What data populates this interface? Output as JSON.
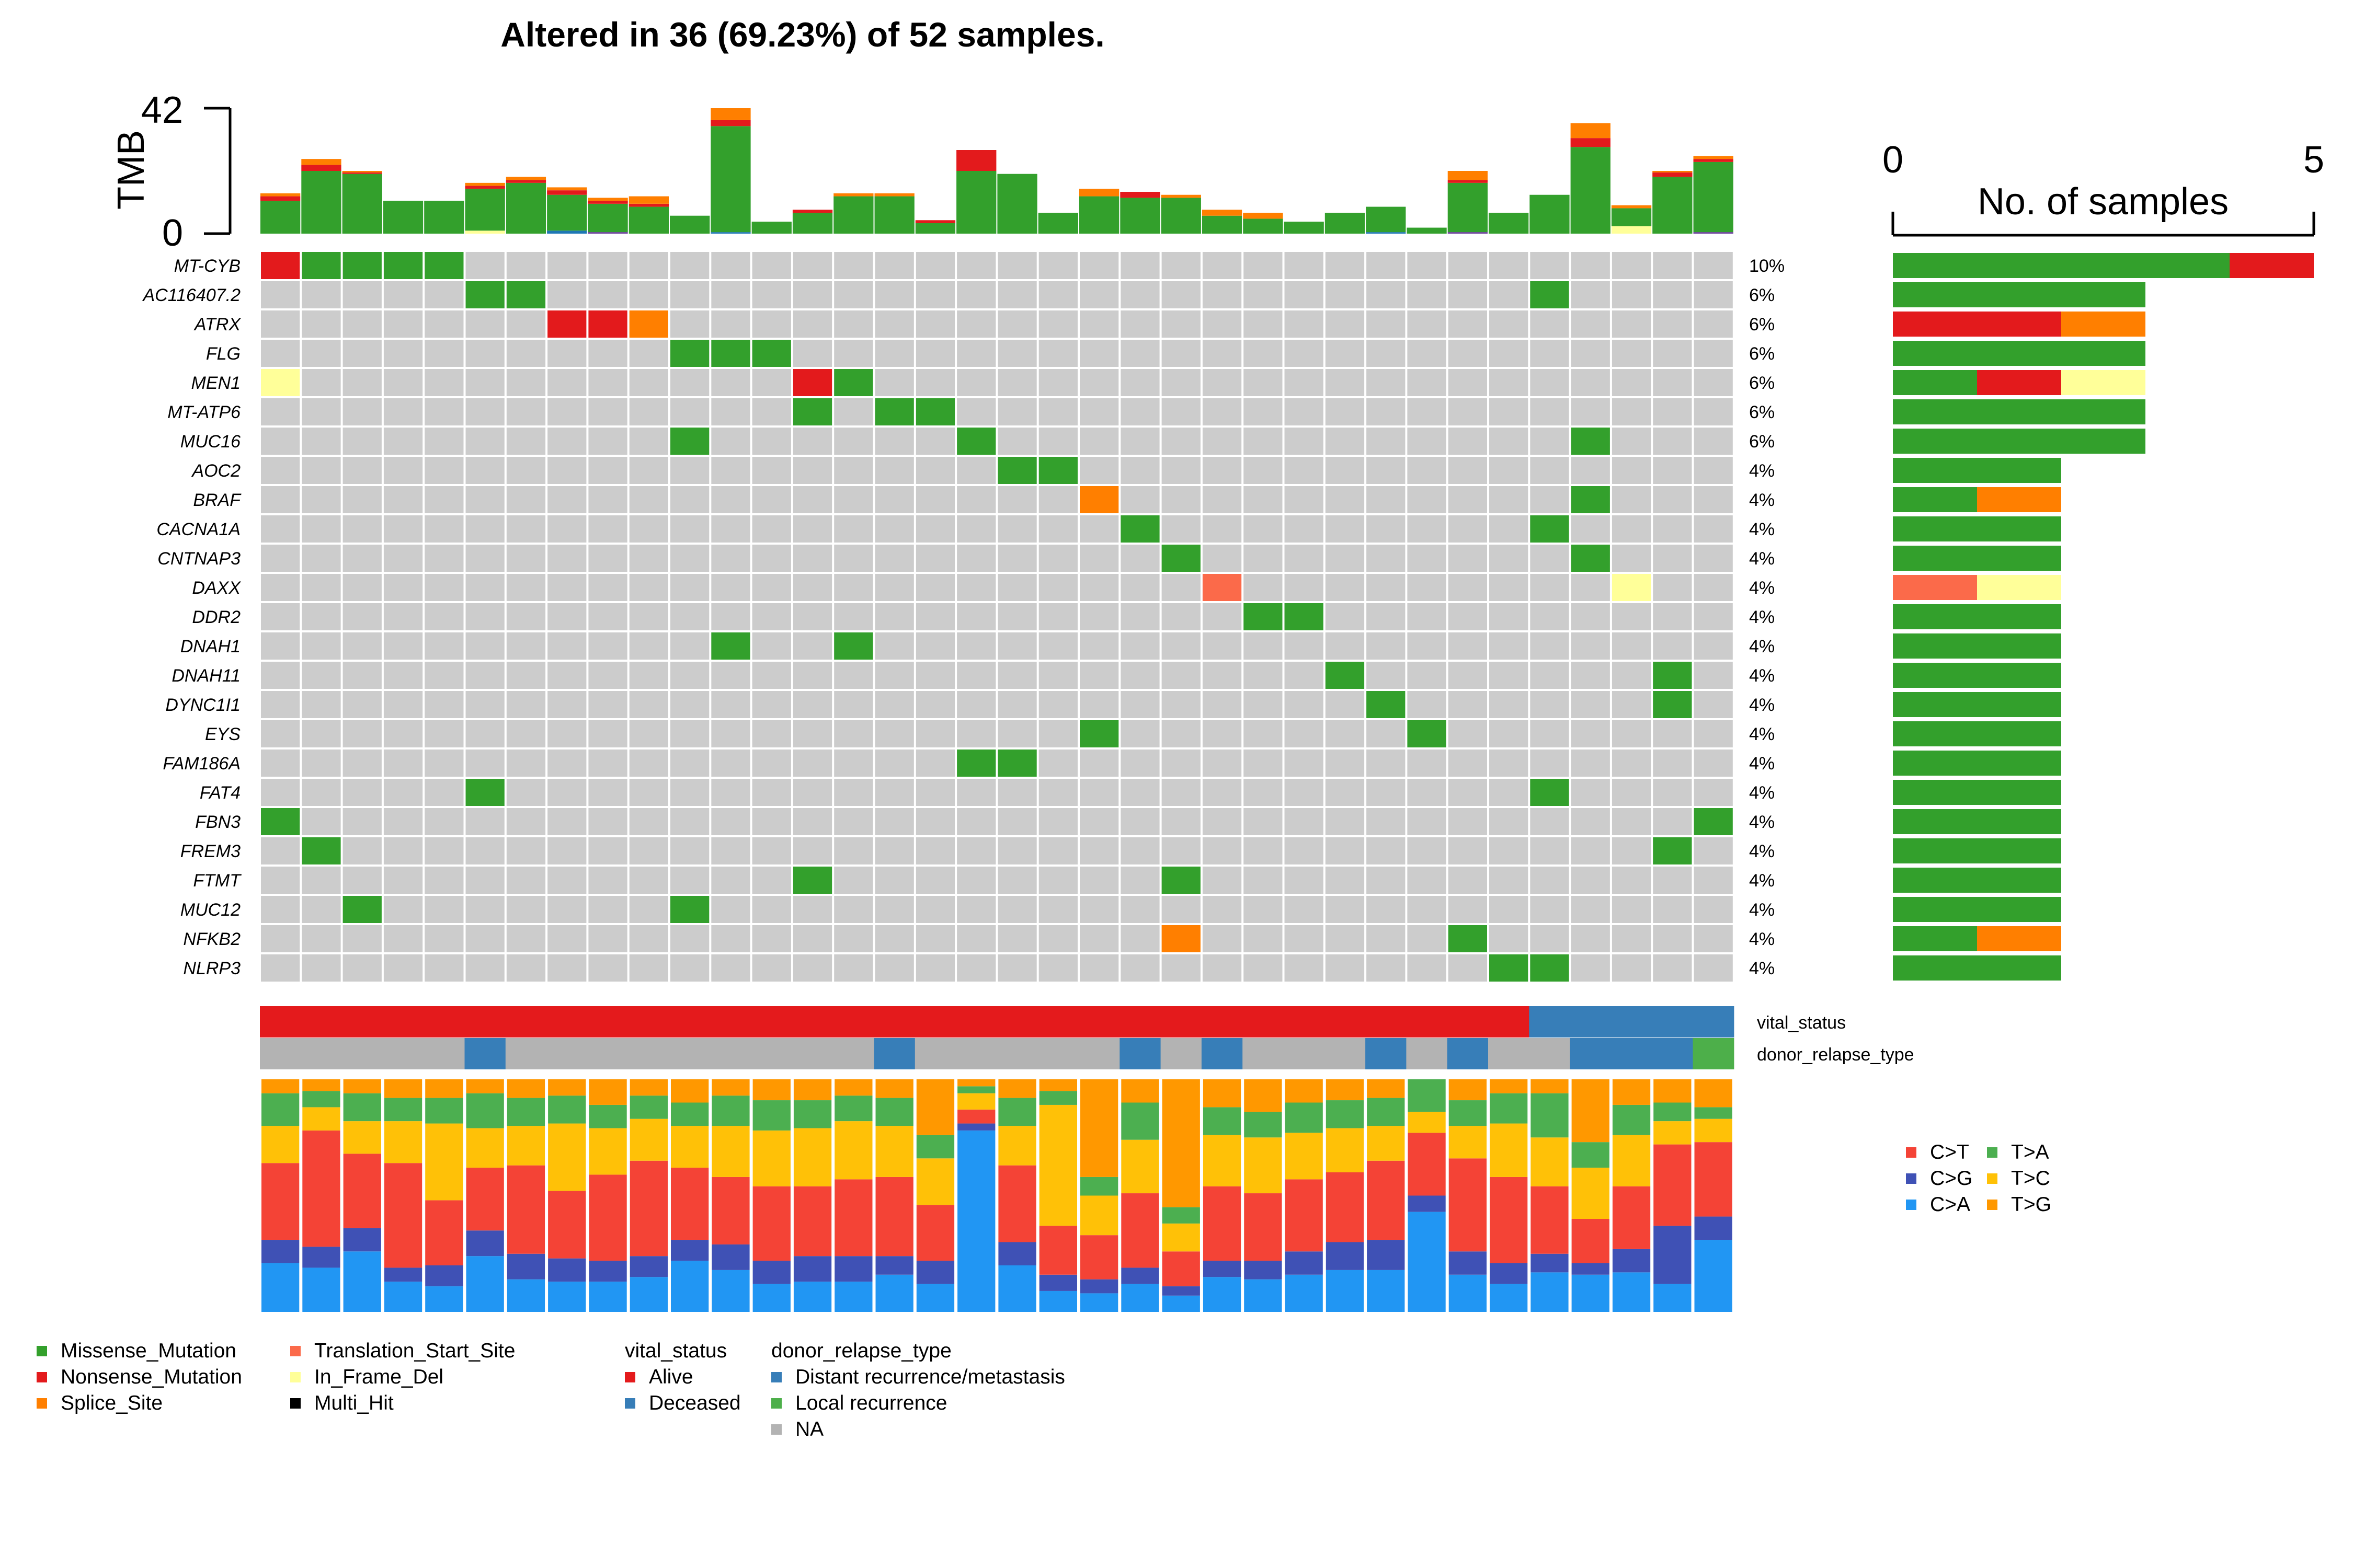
{
  "chart_data": {
    "type": "oncoplot",
    "title": "Altered in 36 (69.23%) of 52 samples.",
    "tmb_axis": {
      "label": "TMB",
      "range": [
        0,
        42
      ],
      "ticks": [
        "0",
        "42"
      ]
    },
    "sample_count_axis": {
      "label": "No. of samples",
      "range": [
        0,
        5
      ],
      "ticks": [
        "0",
        "5"
      ]
    },
    "colors": {
      "Missense_Mutation": "#33a02c",
      "Nonsense_Mutation": "#e31a1c",
      "Splice_Site": "#ff7f00",
      "Translation_Start_Site": "#fb6a4a",
      "In_Frame_Del": "#ffff99",
      "Multi_Hit": "#000000",
      "Frame_Shift_Del": "#1f78b4",
      "Frame_Shift_Ins": "#6a3d9a",
      "empty": "#cccccc",
      "Alive": "#e41a1c",
      "Deceased": "#377eb8",
      "Distant": "#377eb8",
      "Local": "#4daf4a",
      "NA": "#b3b3b3",
      "C>T": "#f44336",
      "C>G": "#3f51b5",
      "C>A": "#2196f3",
      "T>A": "#4caf50",
      "T>C": "#ffc107",
      "T>G": "#ff9800"
    },
    "tmb": [
      {
        "Missense_Mutation": 11,
        "Nonsense_Mutation": 1.5,
        "Splice_Site": 1
      },
      {
        "Missense_Mutation": 21,
        "Nonsense_Mutation": 2,
        "Splice_Site": 2
      },
      {
        "Missense_Mutation": 20,
        "Nonsense_Mutation": 0.5,
        "Splice_Site": 0.5
      },
      {
        "Missense_Mutation": 11
      },
      {
        "Missense_Mutation": 11
      },
      {
        "Missense_Mutation": 14,
        "In_Frame_Del": 1,
        "Nonsense_Mutation": 1,
        "Splice_Site": 1
      },
      {
        "Missense_Mutation": 17,
        "Nonsense_Mutation": 1,
        "Splice_Site": 1
      },
      {
        "Frame_Shift_Del": 1,
        "Missense_Mutation": 12,
        "Nonsense_Mutation": 1.5,
        "Splice_Site": 1
      },
      {
        "Frame_Shift_Ins": 0.5,
        "Missense_Mutation": 9.5,
        "Nonsense_Mutation": 1,
        "Splice_Site": 1
      },
      {
        "Missense_Mutation": 9,
        "Nonsense_Mutation": 1,
        "Splice_Site": 2.5
      },
      {
        "Missense_Mutation": 6
      },
      {
        "Frame_Shift_Del": 0.5,
        "Missense_Mutation": 35.5,
        "Nonsense_Mutation": 2,
        "Splice_Site": 4
      },
      {
        "Missense_Mutation": 4
      },
      {
        "Missense_Mutation": 7,
        "Nonsense_Mutation": 1
      },
      {
        "Missense_Mutation": 12.5,
        "Splice_Site": 1
      },
      {
        "Missense_Mutation": 12.5,
        "Splice_Site": 1
      },
      {
        "Missense_Mutation": 3.5,
        "Nonsense_Mutation": 1
      },
      {
        "Missense_Mutation": 21,
        "Nonsense_Mutation": 7
      },
      {
        "Missense_Mutation": 20
      },
      {
        "Missense_Mutation": 7
      },
      {
        "Missense_Mutation": 12.5,
        "Splice_Site": 2.5
      },
      {
        "Missense_Mutation": 12,
        "Nonsense_Mutation": 2
      },
      {
        "Missense_Mutation": 12,
        "Splice_Site": 1
      },
      {
        "Missense_Mutation": 6,
        "Splice_Site": 2
      },
      {
        "Missense_Mutation": 5,
        "Splice_Site": 2
      },
      {
        "Missense_Mutation": 4
      },
      {
        "Missense_Mutation": 7
      },
      {
        "Frame_Shift_Del": 0.5,
        "Missense_Mutation": 8.5
      },
      {
        "Missense_Mutation": 2
      },
      {
        "Frame_Shift_Ins": 0.5,
        "Missense_Mutation": 16.5,
        "Nonsense_Mutation": 1,
        "Splice_Site": 3
      },
      {
        "Missense_Mutation": 7
      },
      {
        "Missense_Mutation": 13
      },
      {
        "Missense_Mutation": 29,
        "Nonsense_Mutation": 3,
        "Splice_Site": 5
      },
      {
        "In_Frame_Del": 2.5,
        "Missense_Mutation": 6,
        "Splice_Site": 1
      },
      {
        "Missense_Mutation": 19,
        "Nonsense_Mutation": 1.5,
        "Splice_Site": 0.5
      },
      {
        "Frame_Shift_Ins": 0.5,
        "Missense_Mutation": 23.5,
        "Nonsense_Mutation": 1,
        "Splice_Site": 1
      }
    ],
    "genes": [
      {
        "name": "MT-CYB",
        "pct": "10%",
        "cells": {
          "0": "Nonsense_Mutation",
          "1": "Missense_Mutation",
          "2": "Missense_Mutation",
          "3": "Missense_Mutation",
          "4": "Missense_Mutation"
        },
        "counts": {
          "Missense_Mutation": 4,
          "Nonsense_Mutation": 1
        }
      },
      {
        "name": "AC116407.2",
        "pct": "6%",
        "cells": {
          "5": "Missense_Mutation",
          "6": "Missense_Mutation",
          "31": "Missense_Mutation"
        },
        "counts": {
          "Missense_Mutation": 3
        }
      },
      {
        "name": "ATRX",
        "pct": "6%",
        "cells": {
          "7": "Nonsense_Mutation",
          "8": "Nonsense_Mutation",
          "9": "Splice_Site"
        },
        "counts": {
          "Nonsense_Mutation": 2,
          "Splice_Site": 1
        }
      },
      {
        "name": "FLG",
        "pct": "6%",
        "cells": {
          "10": "Missense_Mutation",
          "11": "Missense_Mutation",
          "12": "Missense_Mutation"
        },
        "counts": {
          "Missense_Mutation": 3
        }
      },
      {
        "name": "MEN1",
        "pct": "6%",
        "cells": {
          "0": "In_Frame_Del",
          "13": "Nonsense_Mutation",
          "14": "Missense_Mutation"
        },
        "counts": {
          "Missense_Mutation": 1,
          "Nonsense_Mutation": 1,
          "In_Frame_Del": 1
        }
      },
      {
        "name": "MT-ATP6",
        "pct": "6%",
        "cells": {
          "13": "Missense_Mutation",
          "15": "Missense_Mutation",
          "16": "Missense_Mutation"
        },
        "counts": {
          "Missense_Mutation": 3
        }
      },
      {
        "name": "MUC16",
        "pct": "6%",
        "cells": {
          "10": "Missense_Mutation",
          "17": "Missense_Mutation",
          "32": "Missense_Mutation"
        },
        "counts": {
          "Missense_Mutation": 3
        }
      },
      {
        "name": "AOC2",
        "pct": "4%",
        "cells": {
          "18": "Missense_Mutation",
          "19": "Missense_Mutation"
        },
        "counts": {
          "Missense_Mutation": 2
        }
      },
      {
        "name": "BRAF",
        "pct": "4%",
        "cells": {
          "20": "Splice_Site",
          "32": "Missense_Mutation"
        },
        "counts": {
          "Missense_Mutation": 1,
          "Splice_Site": 1
        }
      },
      {
        "name": "CACNA1A",
        "pct": "4%",
        "cells": {
          "21": "Missense_Mutation",
          "31": "Missense_Mutation"
        },
        "counts": {
          "Missense_Mutation": 2
        }
      },
      {
        "name": "CNTNAP3",
        "pct": "4%",
        "cells": {
          "22": "Missense_Mutation",
          "32": "Missense_Mutation"
        },
        "counts": {
          "Missense_Mutation": 2
        }
      },
      {
        "name": "DAXX",
        "pct": "4%",
        "cells": {
          "23": "Translation_Start_Site",
          "33": "In_Frame_Del"
        },
        "counts": {
          "Translation_Start_Site": 1,
          "In_Frame_Del": 1
        }
      },
      {
        "name": "DDR2",
        "pct": "4%",
        "cells": {
          "24": "Missense_Mutation",
          "25": "Missense_Mutation"
        },
        "counts": {
          "Missense_Mutation": 2
        }
      },
      {
        "name": "DNAH1",
        "pct": "4%",
        "cells": {
          "11": "Missense_Mutation",
          "14": "Missense_Mutation"
        },
        "counts": {
          "Missense_Mutation": 2
        }
      },
      {
        "name": "DNAH11",
        "pct": "4%",
        "cells": {
          "26": "Missense_Mutation",
          "34": "Missense_Mutation"
        },
        "counts": {
          "Missense_Mutation": 2
        }
      },
      {
        "name": "DYNC1I1",
        "pct": "4%",
        "cells": {
          "27": "Missense_Mutation",
          "34": "Missense_Mutation"
        },
        "counts": {
          "Missense_Mutation": 2
        }
      },
      {
        "name": "EYS",
        "pct": "4%",
        "cells": {
          "20": "Missense_Mutation",
          "28": "Missense_Mutation"
        },
        "counts": {
          "Missense_Mutation": 2
        }
      },
      {
        "name": "FAM186A",
        "pct": "4%",
        "cells": {
          "17": "Missense_Mutation",
          "18": "Missense_Mutation"
        },
        "counts": {
          "Missense_Mutation": 2
        }
      },
      {
        "name": "FAT4",
        "pct": "4%",
        "cells": {
          "5": "Missense_Mutation",
          "31": "Missense_Mutation"
        },
        "counts": {
          "Missense_Mutation": 2
        }
      },
      {
        "name": "FBN3",
        "pct": "4%",
        "cells": {
          "0": "Missense_Mutation",
          "35": "Missense_Mutation"
        },
        "counts": {
          "Missense_Mutation": 2
        }
      },
      {
        "name": "FREM3",
        "pct": "4%",
        "cells": {
          "1": "Missense_Mutation",
          "34": "Missense_Mutation"
        },
        "counts": {
          "Missense_Mutation": 2
        }
      },
      {
        "name": "FTMT",
        "pct": "4%",
        "cells": {
          "13": "Missense_Mutation",
          "22": "Missense_Mutation"
        },
        "counts": {
          "Missense_Mutation": 2
        }
      },
      {
        "name": "MUC12",
        "pct": "4%",
        "cells": {
          "2": "Missense_Mutation",
          "10": "Missense_Mutation"
        },
        "counts": {
          "Missense_Mutation": 2
        }
      },
      {
        "name": "NFKB2",
        "pct": "4%",
        "cells": {
          "22": "Splice_Site",
          "29": "Missense_Mutation"
        },
        "counts": {
          "Missense_Mutation": 1,
          "Splice_Site": 1
        }
      },
      {
        "name": "NLRP3",
        "pct": "4%",
        "cells": {
          "30": "Missense_Mutation",
          "31": "Missense_Mutation"
        },
        "counts": {
          "Missense_Mutation": 2
        }
      }
    ],
    "annotations": [
      {
        "name": "vital_status",
        "values": [
          "Alive",
          "Alive",
          "Alive",
          "Alive",
          "Alive",
          "Alive",
          "Alive",
          "Alive",
          "Alive",
          "Alive",
          "Alive",
          "Alive",
          "Alive",
          "Alive",
          "Alive",
          "Alive",
          "Alive",
          "Alive",
          "Alive",
          "Alive",
          "Alive",
          "Alive",
          "Alive",
          "Alive",
          "Alive",
          "Alive",
          "Alive",
          "Alive",
          "Alive",
          "Alive",
          "Alive",
          "Deceased",
          "Deceased",
          "Deceased",
          "Deceased",
          "Deceased"
        ]
      },
      {
        "name": "donor_relapse_type",
        "values": [
          "NA",
          "NA",
          "NA",
          "NA",
          "NA",
          "Distant",
          "NA",
          "NA",
          "NA",
          "NA",
          "NA",
          "NA",
          "NA",
          "NA",
          "NA",
          "Distant",
          "NA",
          "NA",
          "NA",
          "NA",
          "NA",
          "Distant",
          "NA",
          "Distant",
          "NA",
          "NA",
          "NA",
          "Distant",
          "NA",
          "Distant",
          "NA",
          "NA",
          "Distant",
          "Distant",
          "Distant",
          "Local"
        ]
      }
    ],
    "titv": [
      {
        "C>A": 21,
        "C>G": 10,
        "C>T": 33,
        "T>C": 16,
        "T>A": 14,
        "T>G": 6
      },
      {
        "C>A": 19,
        "C>G": 9,
        "C>T": 50,
        "T>C": 10,
        "T>A": 7,
        "T>G": 5
      },
      {
        "C>A": 26,
        "C>G": 10,
        "C>T": 32,
        "T>C": 14,
        "T>A": 12,
        "T>G": 6
      },
      {
        "C>A": 13,
        "C>G": 6,
        "C>T": 45,
        "T>C": 18,
        "T>A": 10,
        "T>G": 8
      },
      {
        "C>A": 11,
        "C>G": 9,
        "C>T": 28,
        "T>C": 33,
        "T>A": 11,
        "T>G": 8
      },
      {
        "C>A": 24,
        "C>G": 11,
        "C>T": 27,
        "T>C": 17,
        "T>A": 15,
        "T>G": 6
      },
      {
        "C>A": 14,
        "C>G": 11,
        "C>T": 38,
        "T>C": 17,
        "T>A": 12,
        "T>G": 8
      },
      {
        "C>A": 13,
        "C>G": 10,
        "C>T": 29,
        "T>C": 29,
        "T>A": 12,
        "T>G": 7
      },
      {
        "C>A": 13,
        "C>G": 9,
        "C>T": 37,
        "T>C": 20,
        "T>A": 10,
        "T>G": 11
      },
      {
        "C>A": 15,
        "C>G": 9,
        "C>T": 41,
        "T>C": 18,
        "T>A": 10,
        "T>G": 7
      },
      {
        "C>A": 22,
        "C>G": 9,
        "C>T": 31,
        "T>C": 18,
        "T>A": 10,
        "T>G": 10
      },
      {
        "C>A": 18,
        "C>G": 11,
        "C>T": 29,
        "T>C": 22,
        "T>A": 13,
        "T>G": 7
      },
      {
        "C>A": 12,
        "C>G": 10,
        "C>T": 32,
        "T>C": 24,
        "T>A": 13,
        "T>G": 9
      },
      {
        "C>A": 13,
        "C>G": 11,
        "C>T": 30,
        "T>C": 25,
        "T>A": 12,
        "T>G": 9
      },
      {
        "C>A": 13,
        "C>G": 11,
        "C>T": 33,
        "T>C": 25,
        "T>A": 11,
        "T>G": 7
      },
      {
        "C>A": 16,
        "C>G": 8,
        "C>T": 34,
        "T>C": 22,
        "T>A": 12,
        "T>G": 8
      },
      {
        "C>A": 12,
        "C>G": 10,
        "C>T": 24,
        "T>C": 20,
        "T>A": 10,
        "T>G": 24
      },
      {
        "C>A": 78,
        "C>G": 3,
        "C>T": 6,
        "T>C": 7,
        "T>A": 3,
        "T>G": 3
      },
      {
        "C>A": 20,
        "C>G": 10,
        "C>T": 33,
        "T>C": 17,
        "T>A": 12,
        "T>G": 8
      },
      {
        "C>A": 9,
        "C>G": 7,
        "C>T": 21,
        "T>C": 52,
        "T>A": 6,
        "T>G": 5
      },
      {
        "C>A": 8,
        "C>G": 6,
        "C>T": 19,
        "T>C": 17,
        "T>A": 8,
        "T>G": 42
      },
      {
        "C>A": 12,
        "C>G": 7,
        "C>T": 32,
        "T>C": 23,
        "T>A": 16,
        "T>G": 10
      },
      {
        "C>A": 7,
        "C>G": 4,
        "C>T": 15,
        "T>C": 12,
        "T>A": 7,
        "T>G": 55
      },
      {
        "C>A": 15,
        "C>G": 7,
        "C>T": 32,
        "T>C": 22,
        "T>A": 12,
        "T>G": 12
      },
      {
        "C>A": 14,
        "C>G": 8,
        "C>T": 29,
        "T>C": 24,
        "T>A": 11,
        "T>G": 14
      },
      {
        "C>A": 16,
        "C>G": 10,
        "C>T": 31,
        "T>C": 20,
        "T>A": 13,
        "T>G": 10
      },
      {
        "C>A": 18,
        "C>G": 12,
        "C>T": 30,
        "T>C": 19,
        "T>A": 12,
        "T>G": 9
      },
      {
        "C>A": 18,
        "C>G": 13,
        "C>T": 34,
        "T>C": 15,
        "T>A": 12,
        "T>G": 8
      },
      {
        "C>A": 43,
        "C>G": 7,
        "C>T": 27,
        "T>C": 9,
        "T>A": 14,
        "T>G": 0
      },
      {
        "C>A": 16,
        "C>G": 10,
        "C>T": 40,
        "T>C": 14,
        "T>A": 11,
        "T>G": 9
      },
      {
        "C>A": 12,
        "C>G": 9,
        "C>T": 37,
        "T>C": 23,
        "T>A": 13,
        "T>G": 6
      },
      {
        "C>A": 17,
        "C>G": 8,
        "C>T": 29,
        "T>C": 21,
        "T>A": 19,
        "T>G": 6
      },
      {
        "C>A": 16,
        "C>G": 5,
        "C>T": 19,
        "T>C": 22,
        "T>A": 11,
        "T>G": 27
      },
      {
        "C>A": 17,
        "C>G": 10,
        "C>T": 27,
        "T>C": 22,
        "T>A": 13,
        "T>G": 11
      },
      {
        "C>A": 12,
        "C>G": 25,
        "C>T": 35,
        "T>C": 10,
        "T>A": 8,
        "T>G": 10
      },
      {
        "C>A": 31,
        "C>G": 10,
        "C>T": 32,
        "T>C": 10,
        "T>A": 5,
        "T>G": 12
      }
    ],
    "legends": {
      "variant_col1": [
        "Missense_Mutation",
        "Nonsense_Mutation",
        "Splice_Site"
      ],
      "variant_col2": [
        "Translation_Start_Site",
        "In_Frame_Del",
        "Multi_Hit"
      ],
      "vital_status": {
        "title": "vital_status",
        "items": [
          {
            "label": "Alive",
            "key": "Alive"
          },
          {
            "label": "Deceased",
            "key": "Deceased"
          }
        ]
      },
      "donor_relapse_type": {
        "title": "donor_relapse_type",
        "items": [
          {
            "label": "Distant recurrence/metastasis",
            "key": "Distant"
          },
          {
            "label": "Local recurrence",
            "key": "Local"
          },
          {
            "label": "NA",
            "key": "NA"
          }
        ]
      },
      "titv_col1": [
        "C>T",
        "C>G",
        "C>A"
      ],
      "titv_col2": [
        "T>A",
        "T>C",
        "T>G"
      ]
    }
  }
}
